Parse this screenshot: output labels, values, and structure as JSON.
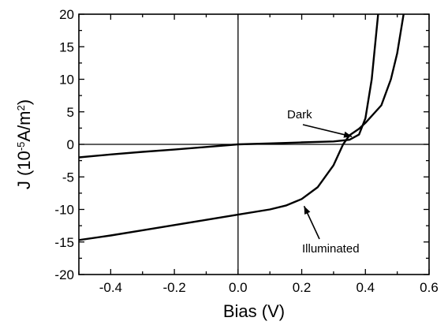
{
  "chart_data": {
    "type": "line",
    "xlabel": "Bias (V)",
    "ylabel_main": "J (10",
    "ylabel_exp": "-5",
    "ylabel_unit": "A/m",
    "ylabel_unit_exp": "2",
    "ylabel_close": ")",
    "xlim": [
      -0.5,
      0.6
    ],
    "ylim": [
      -20,
      20
    ],
    "xticks": [
      -0.4,
      -0.2,
      0.0,
      0.2,
      0.4,
      0.6
    ],
    "xtick_labels": [
      "-0.4",
      "-0.2",
      "0.0",
      "0.2",
      "0.4",
      "0.6"
    ],
    "yticks": [
      -20,
      -15,
      -10,
      -5,
      0,
      5,
      10,
      15,
      20
    ],
    "ytick_labels": [
      "-20",
      "-15",
      "-10",
      "-5",
      "0",
      "5",
      "10",
      "15",
      "20"
    ],
    "grid": false,
    "series": [
      {
        "name": "Dark",
        "x": [
          -0.5,
          -0.4,
          -0.3,
          -0.2,
          -0.1,
          0.0,
          0.1,
          0.2,
          0.3,
          0.35,
          0.38,
          0.4,
          0.42,
          0.44
        ],
        "y": [
          -2.0,
          -1.55,
          -1.15,
          -0.8,
          -0.4,
          0.0,
          0.15,
          0.3,
          0.45,
          0.7,
          1.5,
          4.0,
          10.0,
          20.0
        ]
      },
      {
        "name": "Illuminated",
        "x": [
          -0.5,
          -0.4,
          -0.3,
          -0.2,
          -0.1,
          0.0,
          0.1,
          0.15,
          0.2,
          0.25,
          0.3,
          0.33,
          0.35,
          0.38,
          0.4,
          0.45,
          0.48,
          0.5,
          0.52
        ],
        "y": [
          -14.7,
          -14.0,
          -13.2,
          -12.4,
          -11.6,
          -10.8,
          -10.0,
          -9.4,
          -8.4,
          -6.6,
          -3.2,
          0.0,
          1.4,
          2.4,
          3.3,
          6.0,
          10.0,
          14.0,
          20.0
        ]
      }
    ],
    "annotations": [
      {
        "text": "Dark",
        "target": [
          0.365,
          0.6
        ]
      },
      {
        "text": "Illuminated",
        "target": [
          0.2,
          -9.0
        ]
      }
    ]
  }
}
